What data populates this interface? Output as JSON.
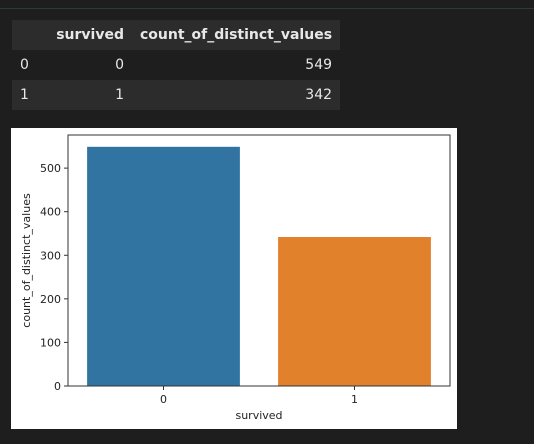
{
  "table": {
    "headers": [
      "",
      "survived",
      "count_of_distinct_values"
    ],
    "rows": [
      {
        "index": "0",
        "survived": "0",
        "count": "549"
      },
      {
        "index": "1",
        "survived": "1",
        "count": "342"
      }
    ]
  },
  "chart_data": {
    "type": "bar",
    "categories": [
      "0",
      "1"
    ],
    "values": [
      549,
      342
    ],
    "xlabel": "survived",
    "ylabel": "count_of_distinct_values",
    "ylim": [
      0,
      576
    ],
    "yticks": [
      0,
      100,
      200,
      300,
      400,
      500
    ],
    "colors": [
      "#3274a1",
      "#e1812c"
    ],
    "grid": false,
    "legend": "none"
  }
}
